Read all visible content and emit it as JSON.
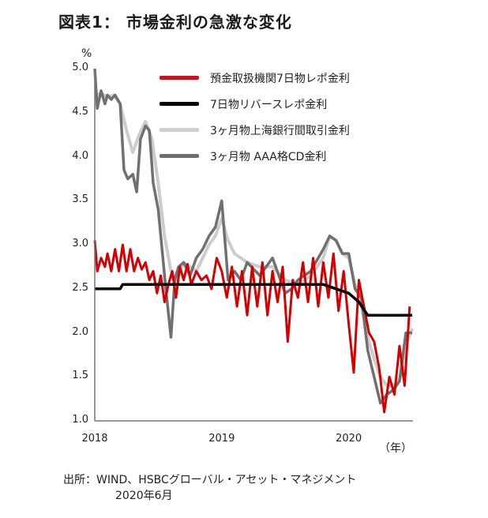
{
  "title": "図表1： 市場金利の急激な変化",
  "unit": "%",
  "x_unit": "（年）",
  "source": {
    "line1": "出所：WIND、HSBCグローバル・アセット・マネジメント",
    "line2": "2020年6月"
  },
  "legend": [
    {
      "label": "預金取扱機関7日物レポ金利",
      "color": "#d40000"
    },
    {
      "label": "7日物リバースレポ金利",
      "color": "#000000"
    },
    {
      "label": "3ヶ月物上海銀行間取引金利",
      "color": "#cccccc"
    },
    {
      "label": "3ヶ月物 AAA格CD金利",
      "color": "#707070"
    }
  ],
  "y_ticks": [
    "5.0",
    "4.5",
    "4.0",
    "3.5",
    "3.0",
    "2.5",
    "2.0",
    "1.5",
    "1.0"
  ],
  "x_ticks": [
    "2018",
    "2019",
    "2020"
  ],
  "chart_data": {
    "type": "line",
    "title": "図表1： 市場金利の急激な変化",
    "xlabel": "（年）",
    "ylabel": "%",
    "ylim": [
      1.0,
      5.0
    ],
    "xlim": [
      2018.0,
      2020.5
    ],
    "grid": false,
    "legend_position": "top-right inside",
    "series": [
      {
        "name": "預金取扱機関7日物レポ金利",
        "color": "#d40000",
        "x": [
          2018.0,
          2018.02,
          2018.05,
          2018.08,
          2018.1,
          2018.13,
          2018.16,
          2018.19,
          2018.22,
          2018.25,
          2018.28,
          2018.31,
          2018.34,
          2018.37,
          2018.4,
          2018.43,
          2018.46,
          2018.49,
          2018.52,
          2018.55,
          2018.58,
          2018.61,
          2018.64,
          2018.67,
          2018.7,
          2018.73,
          2018.76,
          2018.8,
          2018.84,
          2018.88,
          2018.92,
          2018.96,
          2019.0,
          2019.04,
          2019.08,
          2019.12,
          2019.16,
          2019.2,
          2019.24,
          2019.28,
          2019.32,
          2019.36,
          2019.4,
          2019.44,
          2019.48,
          2019.52,
          2019.56,
          2019.6,
          2019.64,
          2019.68,
          2019.72,
          2019.76,
          2019.8,
          2019.84,
          2019.88,
          2019.92,
          2019.96,
          2020.0,
          2020.04,
          2020.08,
          2020.12,
          2020.16,
          2020.2,
          2020.24,
          2020.28,
          2020.32,
          2020.36,
          2020.4,
          2020.44,
          2020.48
        ],
        "values": [
          3.05,
          2.7,
          2.85,
          2.75,
          2.9,
          2.7,
          2.95,
          2.7,
          3.0,
          2.7,
          2.95,
          2.7,
          2.85,
          2.72,
          2.8,
          2.6,
          2.7,
          2.45,
          2.65,
          2.35,
          2.55,
          2.7,
          2.4,
          2.75,
          2.6,
          2.78,
          2.55,
          2.7,
          2.6,
          2.65,
          2.5,
          2.85,
          2.7,
          2.4,
          2.75,
          2.3,
          2.7,
          2.2,
          2.75,
          2.3,
          2.8,
          2.2,
          2.7,
          2.35,
          2.75,
          1.9,
          2.6,
          2.4,
          2.8,
          2.35,
          2.85,
          2.3,
          2.8,
          2.4,
          2.9,
          2.25,
          2.7,
          2.1,
          1.55,
          2.6,
          2.3,
          2.0,
          1.9,
          1.6,
          1.1,
          1.5,
          1.3,
          1.85,
          1.4,
          2.3
        ]
      },
      {
        "name": "7日物リバースレポ金利",
        "color": "#000000",
        "x": [
          2018.0,
          2018.2,
          2018.22,
          2019.8,
          2019.9,
          2020.0,
          2020.08,
          2020.15,
          2020.5
        ],
        "values": [
          2.5,
          2.5,
          2.55,
          2.55,
          2.5,
          2.45,
          2.35,
          2.2,
          2.2
        ]
      },
      {
        "name": "3ヶ月物上海銀行間取引金利",
        "color": "#cccccc",
        "x": [
          2018.0,
          2018.05,
          2018.1,
          2018.15,
          2018.2,
          2018.25,
          2018.3,
          2018.35,
          2018.4,
          2018.45,
          2018.5,
          2018.55,
          2018.6,
          2018.65,
          2018.7,
          2018.75,
          2018.8,
          2018.85,
          2018.9,
          2018.95,
          2019.0,
          2019.05,
          2019.1,
          2019.15,
          2019.2,
          2019.3,
          2019.4,
          2019.5,
          2019.6,
          2019.7,
          2019.8,
          2019.85,
          2019.9,
          2019.95,
          2020.0,
          2020.05,
          2020.1,
          2020.15,
          2020.2,
          2020.25,
          2020.3,
          2020.35,
          2020.4,
          2020.45,
          2020.5
        ],
        "values": [
          4.7,
          4.72,
          4.68,
          4.7,
          4.6,
          4.3,
          4.05,
          4.25,
          4.4,
          4.2,
          3.7,
          3.1,
          2.7,
          2.6,
          2.8,
          2.75,
          2.7,
          2.85,
          3.0,
          3.1,
          3.3,
          3.05,
          2.9,
          2.85,
          2.8,
          2.75,
          2.75,
          2.6,
          2.55,
          2.65,
          2.85,
          3.1,
          3.05,
          2.9,
          2.85,
          2.55,
          2.3,
          1.95,
          1.7,
          1.5,
          1.4,
          1.4,
          1.45,
          1.85,
          2.05
        ]
      },
      {
        "name": "3ヶ月物 AAA格CD金利",
        "color": "#707070",
        "x": [
          2018.0,
          2018.02,
          2018.05,
          2018.08,
          2018.1,
          2018.13,
          2018.16,
          2018.2,
          2018.23,
          2018.26,
          2018.3,
          2018.33,
          2018.36,
          2018.4,
          2018.43,
          2018.46,
          2018.5,
          2018.53,
          2018.56,
          2018.6,
          2018.63,
          2018.66,
          2018.7,
          2018.75,
          2018.8,
          2018.85,
          2018.9,
          2018.95,
          2019.0,
          2019.05,
          2019.1,
          2019.15,
          2019.2,
          2019.3,
          2019.4,
          2019.5,
          2019.55,
          2019.6,
          2019.7,
          2019.8,
          2019.85,
          2019.9,
          2019.95,
          2020.0,
          2020.05,
          2020.1,
          2020.15,
          2020.2,
          2020.25,
          2020.3,
          2020.35,
          2020.4,
          2020.45,
          2020.5
        ],
        "values": [
          5.0,
          4.55,
          4.75,
          4.6,
          4.7,
          4.65,
          4.7,
          4.6,
          3.85,
          3.75,
          3.8,
          3.6,
          4.2,
          4.35,
          4.3,
          3.7,
          3.4,
          2.95,
          2.5,
          1.95,
          2.6,
          2.75,
          2.8,
          2.65,
          2.85,
          2.95,
          3.1,
          3.2,
          3.5,
          2.6,
          2.7,
          2.6,
          2.8,
          2.65,
          2.85,
          2.45,
          2.5,
          2.6,
          2.7,
          2.95,
          3.1,
          3.05,
          2.9,
          2.9,
          2.5,
          2.4,
          1.8,
          1.5,
          1.2,
          1.3,
          1.35,
          1.45,
          2.0,
          2.0
        ]
      }
    ]
  }
}
